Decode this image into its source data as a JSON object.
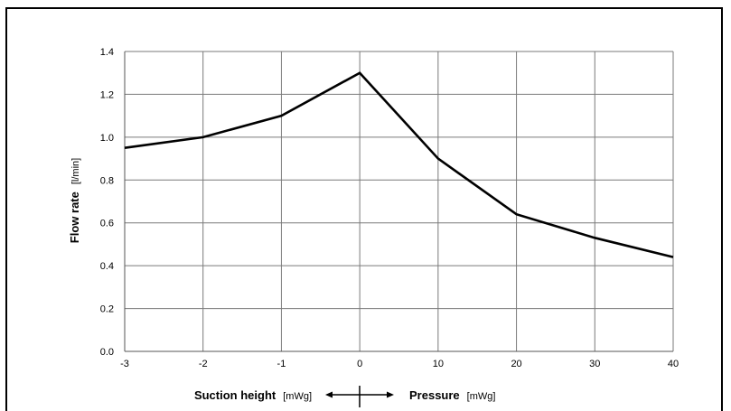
{
  "chart_data": {
    "type": "line",
    "x_ticks": [
      "-3",
      "-2",
      "-1",
      "0",
      "10",
      "20",
      "30",
      "40"
    ],
    "y_ticks": [
      "0.0",
      "0.2",
      "0.4",
      "0.6",
      "0.8",
      "1.0",
      "1.2",
      "1.4"
    ],
    "ylim": [
      0,
      1.4
    ],
    "grid": true,
    "ylabel": "Flow rate",
    "ylabel_unit": "[l/min]",
    "xlabel_left": "Suction height",
    "xlabel_left_unit": "[mWg]",
    "xlabel_right": "Pressure",
    "xlabel_right_unit": "[mWg]",
    "series": [
      {
        "x": [
          "-3",
          "-2",
          "-1",
          "0",
          "10",
          "20",
          "30",
          "40"
        ],
        "values": [
          0.95,
          1.0,
          1.1,
          1.3,
          0.9,
          0.64,
          0.53,
          0.44
        ]
      }
    ]
  }
}
